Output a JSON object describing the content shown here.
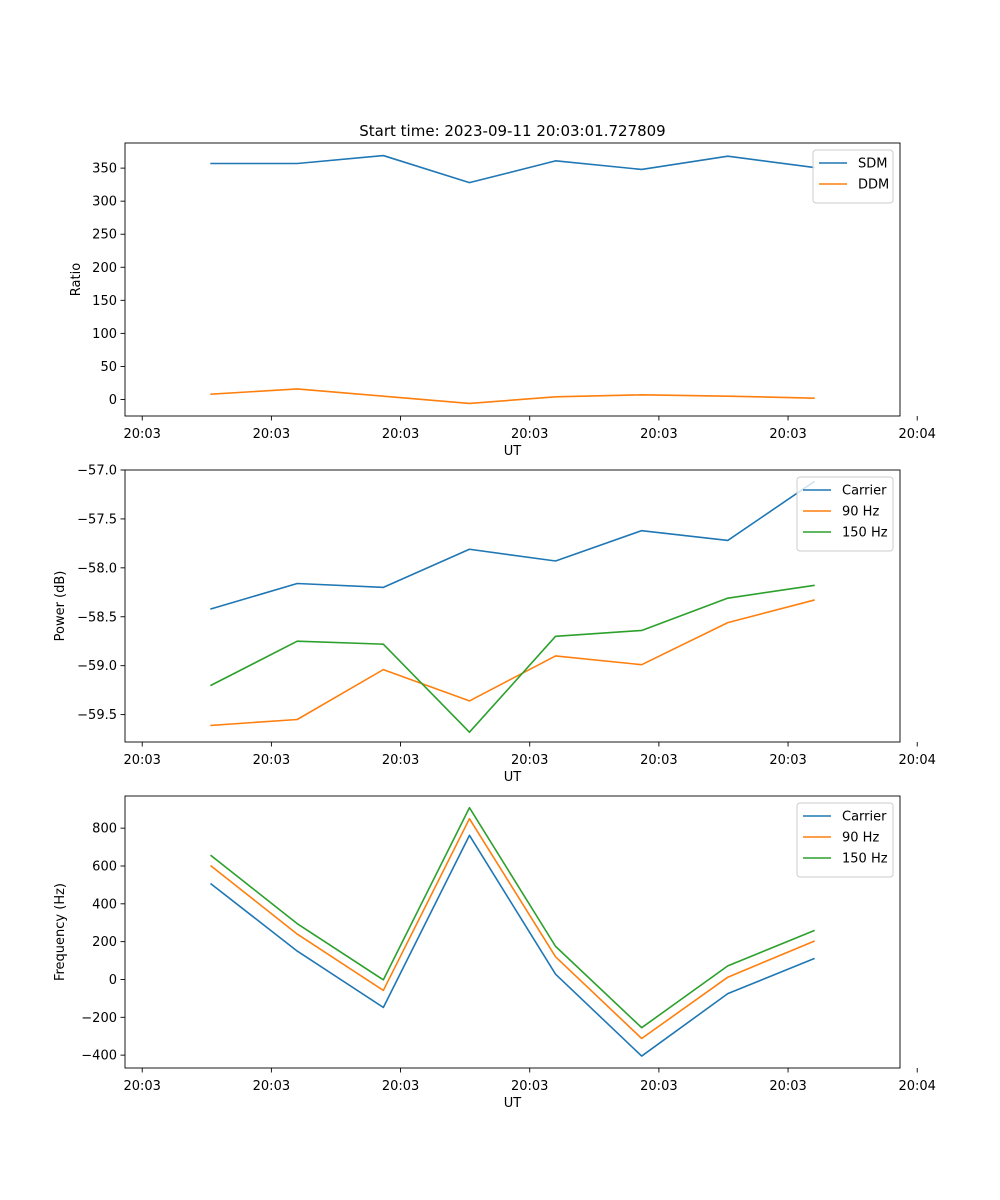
{
  "figure": {
    "title": "Start time: 2023-09-11 20:03:01.727809"
  },
  "chart_data": [
    {
      "type": "line",
      "xlabel": "UT",
      "ylabel": "Ratio",
      "x": [
        0.5,
        1.0,
        1.5,
        2.0,
        2.5,
        3.0,
        3.5,
        4.0
      ],
      "xlim": [
        0,
        4.5
      ],
      "xticks": [
        0.1,
        0.85,
        1.6,
        2.35,
        3.1,
        3.85,
        4.6
      ],
      "xtick_labels": [
        "20:03",
        "20:03",
        "20:03",
        "20:03",
        "20:03",
        "20:03",
        "20:04"
      ],
      "ylim": [
        -25,
        388
      ],
      "yticks": [
        0,
        50,
        100,
        150,
        200,
        250,
        300,
        350
      ],
      "ytick_labels": [
        "0",
        "50",
        "100",
        "150",
        "200",
        "250",
        "300",
        "350"
      ],
      "legend": "upper right",
      "series": [
        {
          "name": "SDM",
          "color": "#1f77b4",
          "values": [
            357,
            357,
            369,
            328,
            361,
            348,
            368,
            351
          ]
        },
        {
          "name": "DDM",
          "color": "#ff7f0e",
          "values": [
            8,
            16,
            5,
            -6,
            4,
            7,
            5,
            2
          ]
        }
      ]
    },
    {
      "type": "line",
      "xlabel": "UT",
      "ylabel": "Power (dB)",
      "x": [
        0.5,
        1.0,
        1.5,
        2.0,
        2.5,
        3.0,
        3.5,
        4.0
      ],
      "xlim": [
        0,
        4.5
      ],
      "xticks": [
        0.1,
        0.85,
        1.6,
        2.35,
        3.1,
        3.85,
        4.6
      ],
      "xtick_labels": [
        "20:03",
        "20:03",
        "20:03",
        "20:03",
        "20:03",
        "20:03",
        "20:04"
      ],
      "ylim": [
        -59.78,
        -57.0
      ],
      "yticks": [
        -59.5,
        -59.0,
        -58.5,
        -58.0,
        -57.5,
        -57.0
      ],
      "ytick_labels": [
        "−59.5",
        "−59.0",
        "−58.5",
        "−58.0",
        "−57.5",
        "−57.0"
      ],
      "legend": "upper right",
      "series": [
        {
          "name": "Carrier",
          "color": "#1f77b4",
          "values": [
            -58.42,
            -58.16,
            -58.2,
            -57.81,
            -57.93,
            -57.62,
            -57.72,
            -57.12
          ]
        },
        {
          "name": "90 Hz",
          "color": "#ff7f0e",
          "values": [
            -59.61,
            -59.55,
            -59.04,
            -59.36,
            -58.9,
            -58.99,
            -58.56,
            -58.33
          ]
        },
        {
          "name": "150 Hz",
          "color": "#2ca02c",
          "values": [
            -59.2,
            -58.75,
            -58.78,
            -59.68,
            -58.7,
            -58.64,
            -58.31,
            -58.18
          ]
        }
      ]
    },
    {
      "type": "line",
      "xlabel": "UT",
      "ylabel": "Frequency (Hz)",
      "x": [
        0.5,
        1.0,
        1.5,
        2.0,
        2.5,
        3.0,
        3.5,
        4.0
      ],
      "xlim": [
        0,
        4.5
      ],
      "xticks": [
        0.1,
        0.85,
        1.6,
        2.35,
        3.1,
        3.85,
        4.6
      ],
      "xtick_labels": [
        "20:03",
        "20:03",
        "20:03",
        "20:03",
        "20:03",
        "20:03",
        "20:04"
      ],
      "ylim": [
        -468,
        970
      ],
      "yticks": [
        -400,
        -200,
        0,
        200,
        400,
        600,
        800
      ],
      "ytick_labels": [
        "−400",
        "−200",
        "0",
        "200",
        "400",
        "600",
        "800"
      ],
      "legend": "upper right",
      "series": [
        {
          "name": "Carrier",
          "color": "#1f77b4",
          "values": [
            505,
            150,
            -148,
            762,
            28,
            -405,
            -75,
            110
          ]
        },
        {
          "name": "90 Hz",
          "color": "#ff7f0e",
          "values": [
            600,
            240,
            -58,
            850,
            120,
            -312,
            12,
            202
          ]
        },
        {
          "name": "150 Hz",
          "color": "#2ca02c",
          "values": [
            655,
            295,
            -2,
            908,
            175,
            -255,
            72,
            258
          ]
        }
      ]
    }
  ]
}
